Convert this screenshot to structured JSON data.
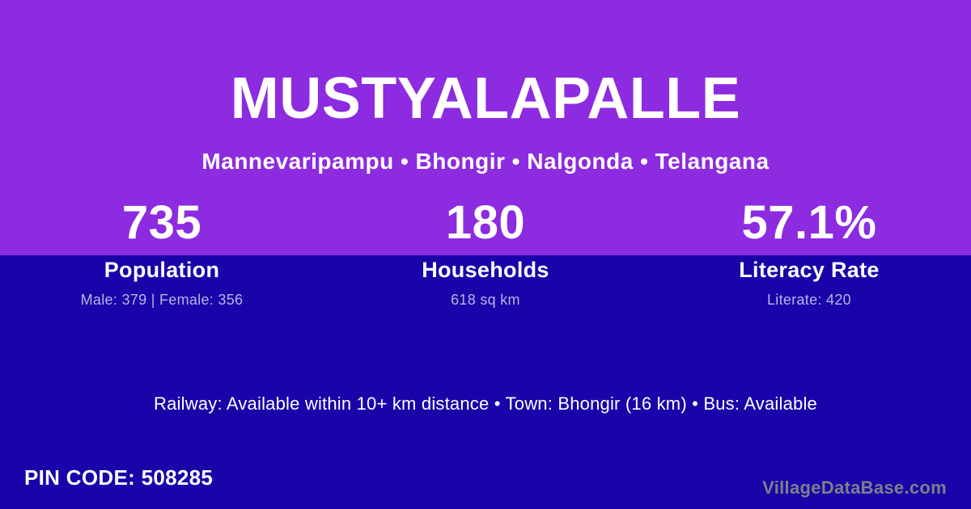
{
  "card": {
    "title": "MUSTYALAPALLE",
    "subtitle": "Mannevaripampu • Bhongir • Nalgonda • Telangana"
  },
  "stats": [
    {
      "value": "735",
      "label": "Population",
      "detail": "Male: 379 | Female: 356"
    },
    {
      "value": "180",
      "label": "Households",
      "detail": "618 sq km"
    },
    {
      "value": "57.1%",
      "label": "Literacy Rate",
      "detail": "Literate: 420"
    }
  ],
  "transport": {
    "line": "Railway: Available within 10+ km distance  •  Town: Bhongir (16 km)  •  Bus: Available"
  },
  "footer": {
    "pin_code": "PIN CODE: 508285",
    "watermark": "VillageDataBase.com"
  },
  "colors": {
    "top_background": "#8C2BDF",
    "bottom_background": "#1804A8",
    "text_primary": "#FFFFFF",
    "text_muted": "#BDB2E6",
    "watermark_text": "#7F7F8C"
  }
}
